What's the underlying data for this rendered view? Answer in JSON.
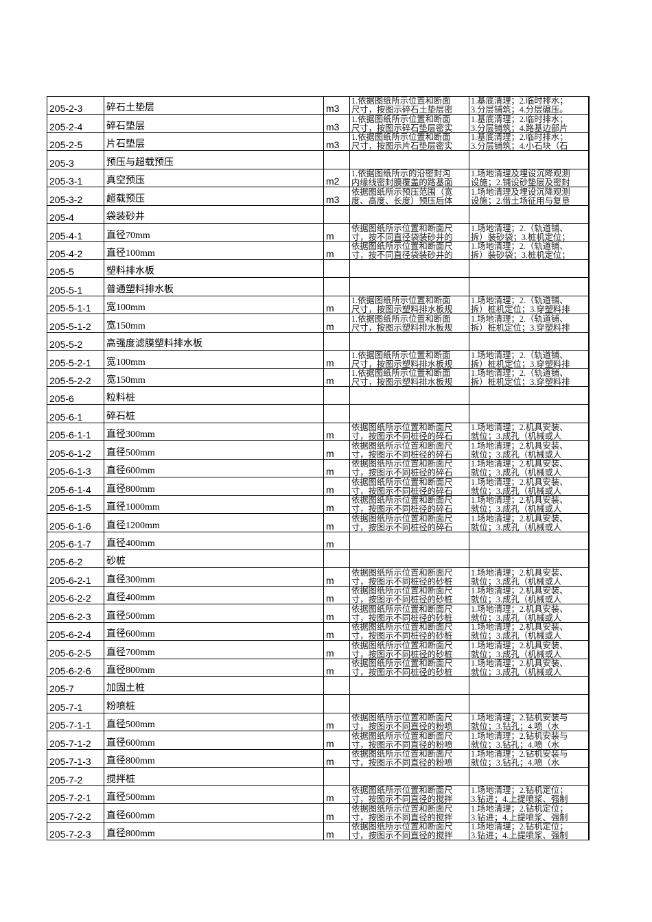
{
  "rows": [
    {
      "code": "205-2-3",
      "name": "碎石土垫层",
      "unit": "m3",
      "desc": [
        "1.依据图纸所示位置和断面",
        "尺寸，按图示碎石土垫层密"
      ],
      "work": [
        "1.基底清理；2.临时排水；",
        "3.分层铺筑；4.分层碾压。"
      ]
    },
    {
      "code": "205-2-4",
      "name": "碎石垫层",
      "unit": "m3",
      "desc": [
        "1.依据图纸所示位置和断面",
        "尺寸，按图示碎石垫层密实"
      ],
      "work": [
        "1.基底清理；2.临时排水；",
        "3.分层铺筑；4.路基边部片"
      ]
    },
    {
      "code": "205-2-5",
      "name": "片石垫层",
      "unit": "m3",
      "desc": [
        "1.依据图纸所示位置和断面",
        "尺寸，按图示片石垫层密实"
      ],
      "work": [
        "1.基底清理；2.临时排水；",
        "3.分层铺筑；4.小石块（石"
      ]
    },
    {
      "code": "205-3",
      "name": "预压与超载预压",
      "unit": "",
      "desc": [],
      "work": []
    },
    {
      "code": "205-3-1",
      "name": "真空预压",
      "unit": "m2",
      "desc": [
        "1.依据图纸所示的沿密封沟",
        "内缘线密封膜覆盖的路基面"
      ],
      "work": [
        "1.场地清理及埋设沉降观测",
        "设施；2.铺设砂垫层及密封"
      ]
    },
    {
      "code": "205-3-2",
      "name": "超载预压",
      "unit": "m3",
      "desc": [
        "依据图纸所示预压范围（宽",
        "度、高度、长度）预压后体"
      ],
      "work": [
        "1.场地清理及埋设沉降观测",
        "设施；2.借土场征用与复垦"
      ]
    },
    {
      "code": "205-4",
      "name": "袋装砂井",
      "unit": "",
      "desc": [],
      "work": []
    },
    {
      "code": "205-4-1",
      "name": "直径70mm",
      "unit": "m",
      "desc": [
        "依据图纸所示位置和断面尺",
        "寸，按不同直径袋装砂井的"
      ],
      "work": [
        "1.场地清理；2.（轨道铺、",
        "拆）装砂袋；3.桩机定位；"
      ]
    },
    {
      "code": "205-4-2",
      "name": "直径100mm",
      "unit": "m",
      "desc": [
        "依据图纸所示位置和断面尺",
        "寸，按不同直径袋装砂井的"
      ],
      "work": [
        "1.场地清理；2.（轨道铺、",
        "拆）装砂袋；3.桩机定位；"
      ]
    },
    {
      "code": "205-5",
      "name": "塑料排水板",
      "unit": "",
      "desc": [],
      "work": []
    },
    {
      "code": "205-5-1",
      "name": "普通塑料排水板",
      "unit": "",
      "desc": [],
      "work": []
    },
    {
      "code": "205-5-1-1",
      "name": "宽100mm",
      "unit": "m",
      "desc": [
        "1.依据图纸所示位置和断面",
        "尺寸，按图示塑料排水板规"
      ],
      "work": [
        "1.场地清理；2.（轨道铺、",
        "拆）桩机定位；3.穿塑料排"
      ]
    },
    {
      "code": "205-5-1-2",
      "name": "宽150mm",
      "unit": "m",
      "desc": [
        "1.依据图纸所示位置和断面",
        "尺寸，按图示塑料排水板规"
      ],
      "work": [
        "1.场地清理；2.（轨道铺、",
        "拆）桩机定位；3.穿塑料排"
      ]
    },
    {
      "code": "205-5-2",
      "name": "高强度滤膜塑料排水板",
      "unit": "",
      "desc": [],
      "work": []
    },
    {
      "code": "205-5-2-1",
      "name": "宽100mm",
      "unit": "m",
      "desc": [
        "1.依据图纸所示位置和断面",
        "尺寸，按图示塑料排水板规"
      ],
      "work": [
        "1.场地清理；2.（轨道铺、",
        "拆）桩机定位；3.穿塑料排"
      ]
    },
    {
      "code": "205-5-2-2",
      "name": "宽150mm",
      "unit": "m",
      "desc": [
        "1.依据图纸所示位置和断面",
        "尺寸，按图示塑料排水板规"
      ],
      "work": [
        "1.场地清理；2.（轨道铺、",
        "拆）桩机定位；3.穿塑料排"
      ]
    },
    {
      "code": "205-6",
      "name": "粒料桩",
      "unit": "",
      "desc": [],
      "work": []
    },
    {
      "code": "205-6-1",
      "name": "碎石桩",
      "unit": "",
      "desc": [],
      "work": []
    },
    {
      "code": "205-6-1-1",
      "name": "直径300mm",
      "unit": "m",
      "desc": [
        "依据图纸所示位置和断面尺",
        "寸，按图示不同桩径的碎石"
      ],
      "work": [
        "1.场地清理；2.机具安装、",
        "就位；3.成孔（机械或人"
      ]
    },
    {
      "code": "205-6-1-2",
      "name": "直径500mm",
      "unit": "m",
      "desc": [
        "依据图纸所示位置和断面尺",
        "寸，按图示不同桩径的碎石"
      ],
      "work": [
        "1.场地清理；2.机具安装、",
        "就位；3.成孔（机械或人"
      ]
    },
    {
      "code": "205-6-1-3",
      "name": "直径600mm",
      "unit": "m",
      "desc": [
        "依据图纸所示位置和断面尺",
        "寸，按图示不同桩径的碎石"
      ],
      "work": [
        "1.场地清理；2.机具安装、",
        "就位；3.成孔（机械或人"
      ]
    },
    {
      "code": "205-6-1-4",
      "name": "直径800mm",
      "unit": "m",
      "desc": [
        "依据图纸所示位置和断面尺",
        "寸，按图示不同桩径的碎石"
      ],
      "work": [
        "1.场地清理；2.机具安装、",
        "就位；3.成孔（机械或人"
      ]
    },
    {
      "code": "205-6-1-5",
      "name": "直径1000mm",
      "unit": "m",
      "desc": [
        "依据图纸所示位置和断面尺",
        "寸，按图示不同桩径的碎石"
      ],
      "work": [
        "1.场地清理；2.机具安装、",
        "就位；3.成孔（机械或人"
      ]
    },
    {
      "code": "205-6-1-6",
      "name": "直径1200mm",
      "unit": "m",
      "desc": [
        "依据图纸所示位置和断面尺",
        "寸，按图示不同桩径的碎石"
      ],
      "work": [
        "1.场地清理；2.机具安装、",
        "就位；3.成孔（机械或人"
      ]
    },
    {
      "code": "205-6-1-7",
      "name": "直径400mm",
      "unit": "m",
      "desc": [],
      "work": []
    },
    {
      "code": "205-6-2",
      "name": "砂桩",
      "unit": "",
      "desc": [],
      "work": []
    },
    {
      "code": "205-6-2-1",
      "name": "直径300mm",
      "unit": "m",
      "desc": [
        "依据图纸所示位置和断面尺",
        "寸，按图示不同桩径的砂桩"
      ],
      "work": [
        "1.场地清理；2.机具安装、",
        "就位；3.成孔（机械或人"
      ]
    },
    {
      "code": "205-6-2-2",
      "name": "直径400mm",
      "unit": "m",
      "desc": [
        "依据图纸所示位置和断面尺",
        "寸，按图示不同桩径的砂桩"
      ],
      "work": [
        "1.场地清理；2.机具安装、",
        "就位；3.成孔（机械或人"
      ]
    },
    {
      "code": "205-6-2-3",
      "name": "直径500mm",
      "unit": "m",
      "desc": [
        "依据图纸所示位置和断面尺",
        "寸，按图示不同桩径的砂桩"
      ],
      "work": [
        "1.场地清理；2.机具安装、",
        "就位；3.成孔（机械或人"
      ]
    },
    {
      "code": "205-6-2-4",
      "name": "直径600mm",
      "unit": "m",
      "desc": [
        "依据图纸所示位置和断面尺",
        "寸，按图示不同桩径的砂桩"
      ],
      "work": [
        "1.场地清理；2.机具安装、",
        "就位；3.成孔（机械或人"
      ]
    },
    {
      "code": "205-6-2-5",
      "name": "直径700mm",
      "unit": "m",
      "desc": [
        "依据图纸所示位置和断面尺",
        "寸，按图示不同桩径的砂桩"
      ],
      "work": [
        "1.场地清理；2.机具安装、",
        "就位；3.成孔（机械或人"
      ]
    },
    {
      "code": "205-6-2-6",
      "name": "直径800mm",
      "unit": "m",
      "desc": [
        "依据图纸所示位置和断面尺",
        "寸，按图示不同桩径的砂桩"
      ],
      "work": [
        "1.场地清理；2.机具安装、",
        "就位；3.成孔（机械或人"
      ]
    },
    {
      "code": "205-7",
      "name": "加固土桩",
      "unit": "",
      "desc": [],
      "work": []
    },
    {
      "code": "205-7-1",
      "name": "粉喷桩",
      "unit": "",
      "desc": [],
      "work": []
    },
    {
      "code": "205-7-1-1",
      "name": "直径500mm",
      "unit": "m",
      "desc": [
        "依据图纸所示位置和断面尺",
        "寸，按图示不同直径的粉喷"
      ],
      "work": [
        "1.场地清理；2.钻机安装与",
        "就位；3.钻孔；4.喷（水"
      ]
    },
    {
      "code": "205-7-1-2",
      "name": "直径600mm",
      "unit": "m",
      "desc": [
        "依据图纸所示位置和断面尺",
        "寸，按图示不同直径的粉喷"
      ],
      "work": [
        "1.场地清理；2.钻机安装与",
        "就位；3.钻孔；4.喷（水"
      ]
    },
    {
      "code": "205-7-1-3",
      "name": "直径800mm",
      "unit": "m",
      "desc": [
        "依据图纸所示位置和断面尺",
        "寸，按图示不同直径的粉喷"
      ],
      "work": [
        "1.场地清理；2.钻机安装与",
        "就位；3.钻孔；4.喷（水"
      ]
    },
    {
      "code": "205-7-2",
      "name": "搅拌桩",
      "unit": "",
      "desc": [],
      "work": []
    },
    {
      "code": "205-7-2-1",
      "name": "直径500mm",
      "unit": "m",
      "desc": [
        "依据图纸所示位置和断面尺",
        "寸，按图示不同直径的搅拌"
      ],
      "work": [
        "1.场地清理；2.钻机定位；",
        "3.钻进；4.上提喷浆、强制"
      ]
    },
    {
      "code": "205-7-2-2",
      "name": "直径600mm",
      "unit": "m",
      "desc": [
        "依据图纸所示位置和断面尺",
        "寸，按图示不同直径的搅拌"
      ],
      "work": [
        "1.场地清理；2.钻机定位；",
        "3.钻进；4.上提喷浆、强制"
      ]
    },
    {
      "code": "205-7-2-3",
      "name": "直径800mm",
      "unit": "m",
      "desc": [
        "依据图纸所示位置和断面尺",
        "寸，按图示不同直径的搅拌"
      ],
      "work": [
        "1.场地清理；2.钻机定位；",
        "3.钻进；4.上提喷浆、强制"
      ]
    }
  ]
}
